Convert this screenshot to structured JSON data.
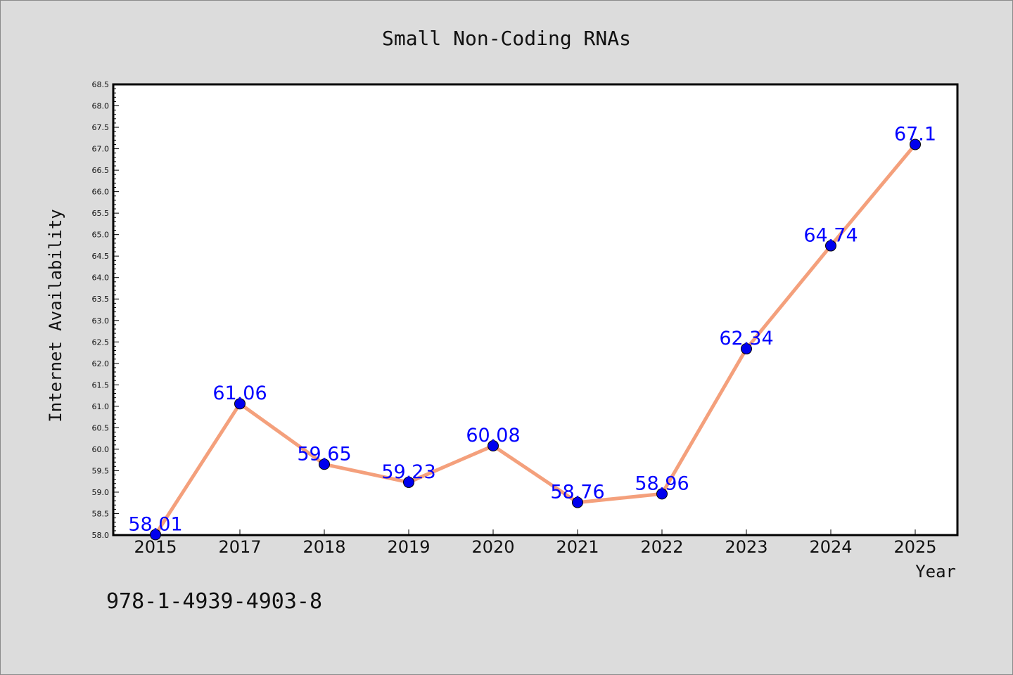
{
  "chart_data": {
    "type": "line",
    "title": "Small Non-Coding RNAs",
    "xlabel": "Year",
    "ylabel": "Internet Availability",
    "categories": [
      "2015",
      "2017",
      "2018",
      "2019",
      "2020",
      "2021",
      "2022",
      "2023",
      "2024",
      "2025"
    ],
    "series": [
      {
        "values": [
          58.01,
          61.06,
          59.65,
          59.23,
          60.08,
          58.76,
          58.96,
          62.34,
          64.74,
          67.1
        ],
        "labels": [
          "58.01",
          "61.06",
          "59.65",
          "59.23",
          "60.08",
          "58.76",
          "58.96",
          "62.34",
          "64.74",
          "67.1"
        ]
      }
    ],
    "ylim": [
      58.0,
      68.5
    ],
    "yticks": [
      "58.0",
      "58.5",
      "59.0",
      "59.5",
      "60.0",
      "60.5",
      "61.0",
      "61.5",
      "62.0",
      "62.5",
      "63.0",
      "63.5",
      "64.0",
      "64.5",
      "65.0",
      "65.5",
      "66.0",
      "66.5",
      "67.0",
      "67.5",
      "68.0",
      "68.5"
    ],
    "grid": false,
    "line_color": "#f4a07c",
    "marker_color": "#0000ee",
    "label_color": "#0000ff"
  },
  "annotation": "978-1-4939-4903-8"
}
